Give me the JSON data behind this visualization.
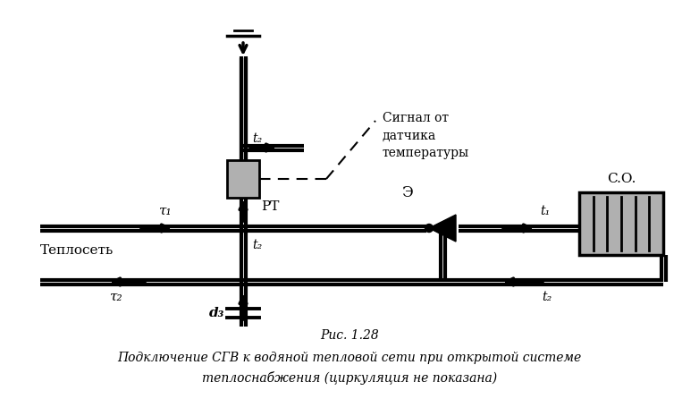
{
  "fig_width": 7.82,
  "fig_height": 4.46,
  "dpi": 100,
  "bg_color": "#ffffff",
  "line_color": "#000000",
  "label_tau1": "τ₁",
  "label_tau2": "τ₂",
  "label_t1": "t₁",
  "label_t2": "t₂",
  "label_d3": "d₃",
  "label_RT": "PT",
  "label_CO": "C.O.",
  "label_E": "Э",
  "label_signal": "Сигнал от\nдатчика\nтемпературы",
  "label_teplset": "Теплосеть",
  "caption_line1": "Рис. 1.28",
  "caption_line2": "Подключение СГВ к водяной тепловой сети при открытой системе",
  "caption_line3": "теплоснабжения (циркуляция не показана)",
  "gray_color": "#b0b0b0"
}
